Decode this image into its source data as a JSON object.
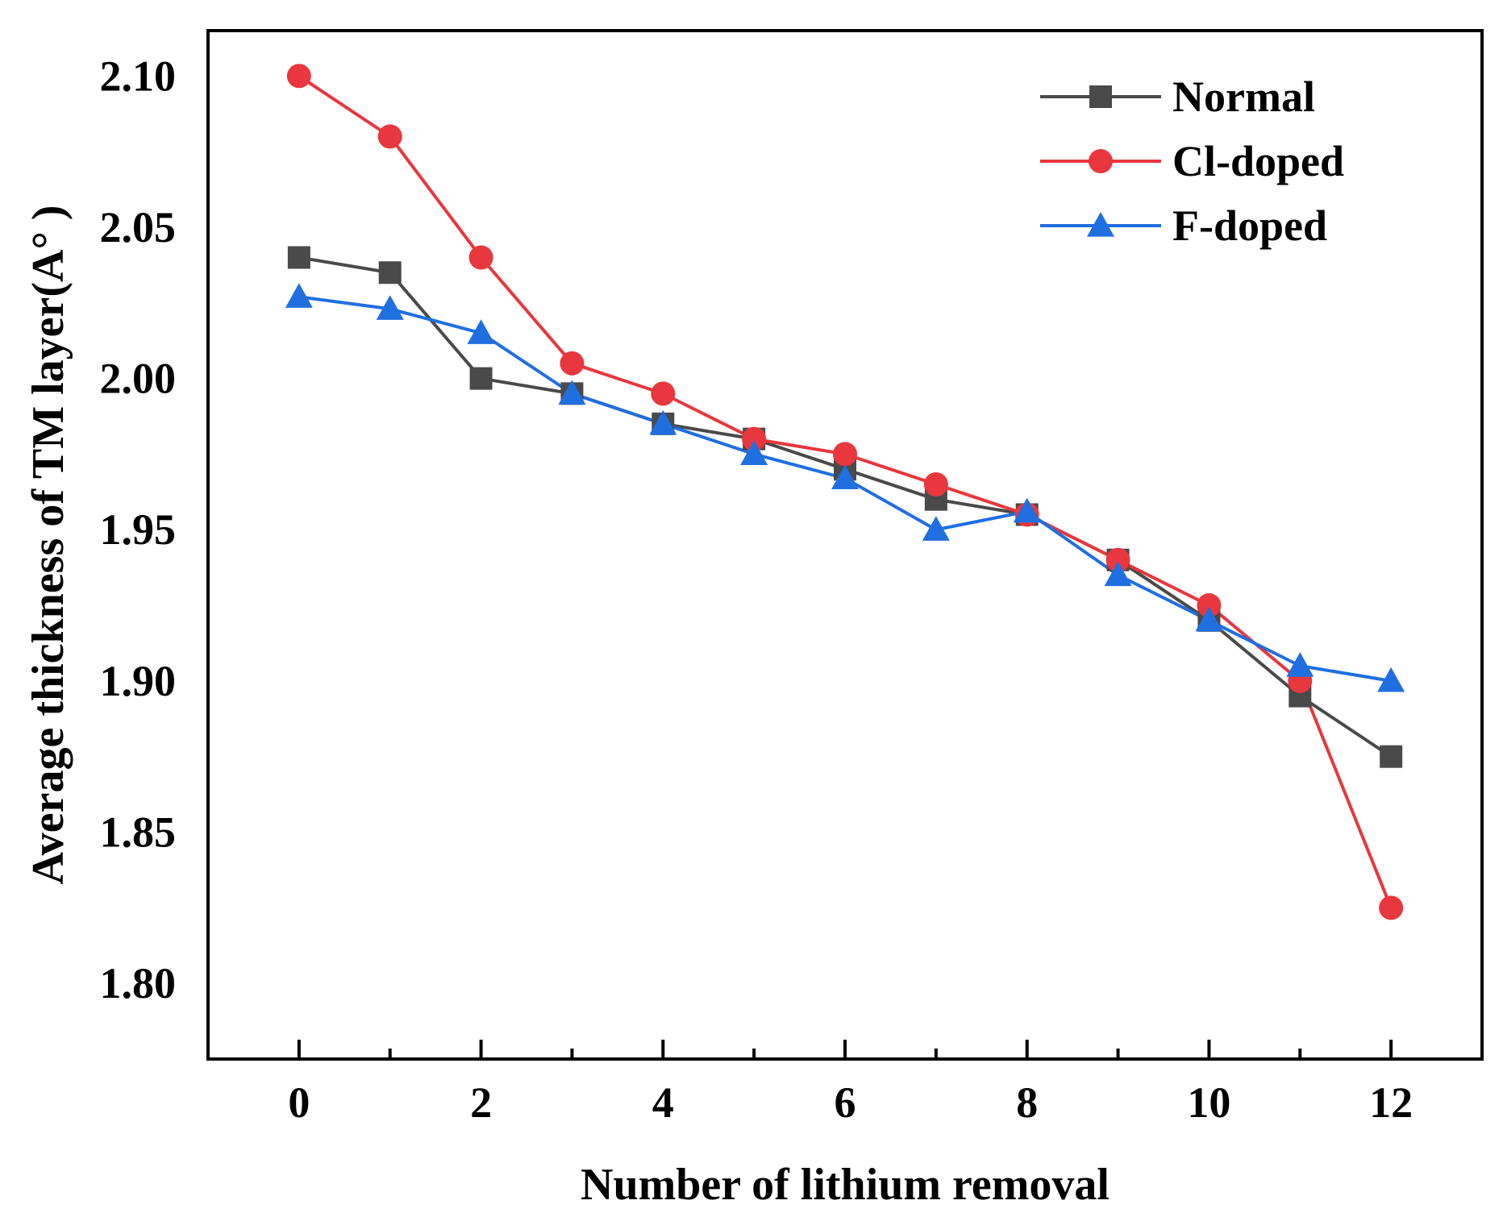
{
  "chart_data": {
    "type": "line",
    "xlabel": "Number of  lithium removal",
    "ylabel": "Average thickness of TM layer(A° )",
    "xlim": [
      -1,
      13
    ],
    "ylim": [
      1.775,
      2.115
    ],
    "xticks": [
      0,
      2,
      4,
      6,
      8,
      10,
      12
    ],
    "xtick_labels": [
      "0",
      "2",
      "4",
      "6",
      "8",
      "10",
      "12"
    ],
    "xticks_minor": [
      1,
      3,
      5,
      7,
      9,
      11
    ],
    "yticks": [
      1.8,
      1.85,
      1.9,
      1.95,
      2.0,
      2.05,
      2.1
    ],
    "ytick_labels": [
      "1.80",
      "1.85",
      "1.90",
      "1.95",
      "2.00",
      "2.05",
      "2.10"
    ],
    "grid": false,
    "legend_position": "top-right",
    "x": [
      0,
      1,
      2,
      3,
      4,
      5,
      6,
      7,
      8,
      9,
      10,
      11,
      12
    ],
    "series": [
      {
        "name": "Normal",
        "marker": "square",
        "color": "#4a4a4a",
        "values": [
          2.04,
          2.035,
          2.0,
          1.995,
          1.985,
          1.98,
          1.97,
          1.96,
          1.955,
          1.94,
          1.92,
          1.895,
          1.875
        ]
      },
      {
        "name": "Cl-doped",
        "marker": "circle",
        "color": "#e8373d",
        "values": [
          2.1,
          2.08,
          2.04,
          2.005,
          1.995,
          1.98,
          1.975,
          1.965,
          1.955,
          1.94,
          1.925,
          1.9,
          1.825
        ]
      },
      {
        "name": "F-doped",
        "marker": "triangle",
        "color": "#1f6fe0",
        "values": [
          2.027,
          2.023,
          2.015,
          1.995,
          1.985,
          1.975,
          1.967,
          1.95,
          1.956,
          1.935,
          1.92,
          1.905,
          1.9
        ]
      }
    ]
  }
}
